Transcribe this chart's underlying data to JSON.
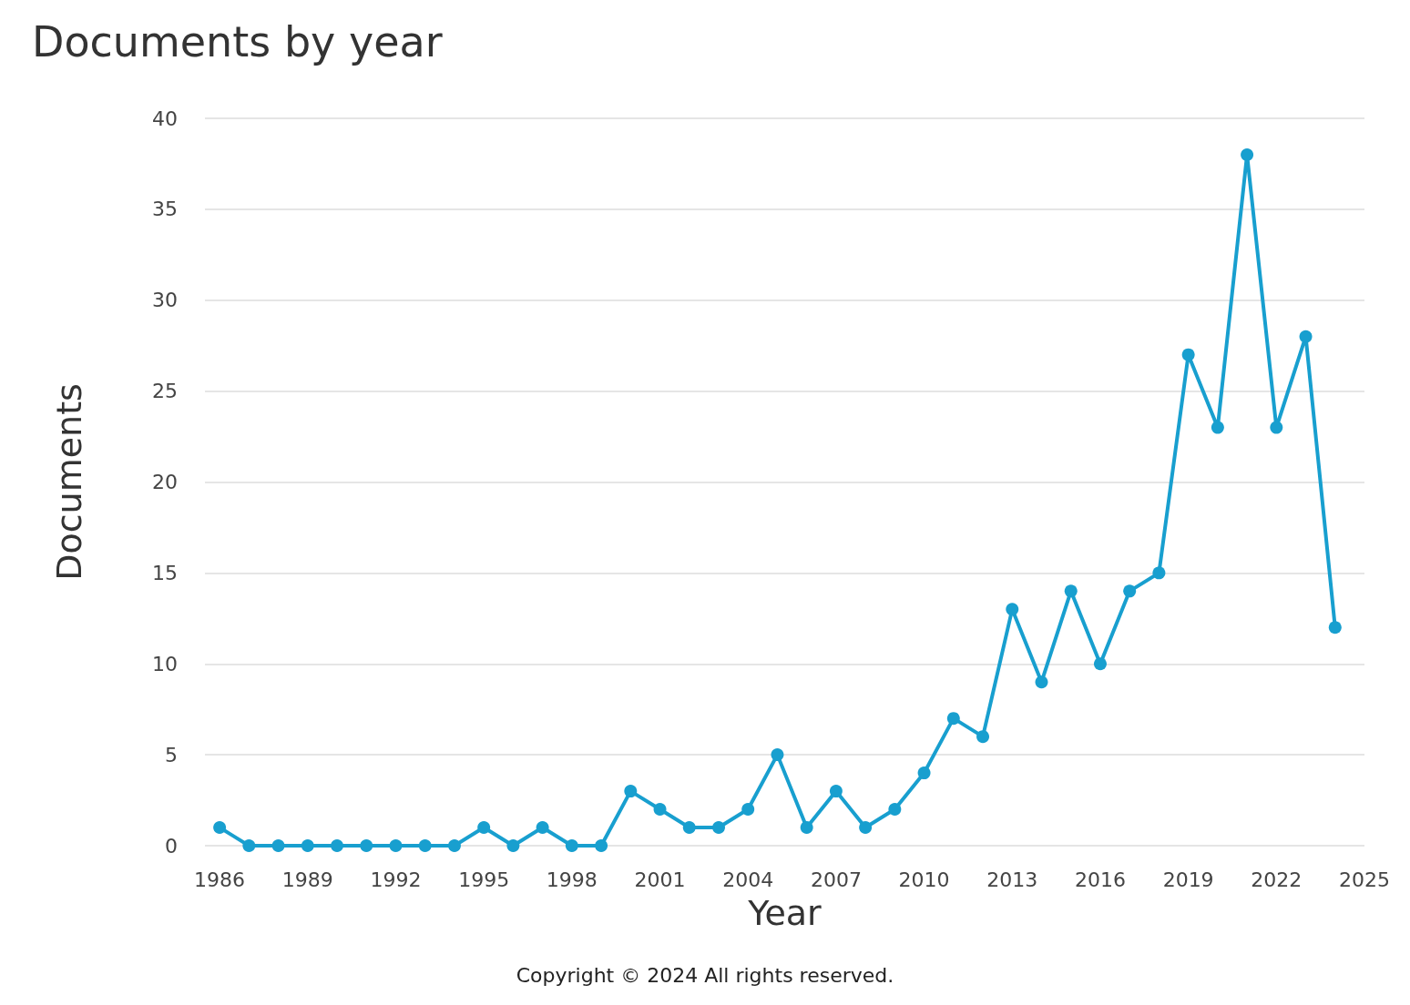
{
  "chart_data": {
    "type": "line",
    "title": "Documents by year",
    "xlabel": "Year",
    "ylabel": "Documents",
    "x": [
      1986,
      1987,
      1988,
      1989,
      1990,
      1991,
      1992,
      1993,
      1994,
      1995,
      1996,
      1997,
      1998,
      1999,
      2000,
      2001,
      2002,
      2003,
      2004,
      2005,
      2006,
      2007,
      2008,
      2009,
      2010,
      2011,
      2012,
      2013,
      2014,
      2015,
      2016,
      2017,
      2018,
      2019,
      2020,
      2021,
      2022,
      2023,
      2024
    ],
    "series": [
      {
        "color": "#189fcf",
        "values": [
          1,
          0,
          0,
          0,
          0,
          0,
          0,
          0,
          0,
          1,
          0,
          1,
          0,
          0,
          3,
          2,
          1,
          1,
          2,
          5,
          1,
          3,
          1,
          2,
          4,
          7,
          6,
          13,
          9,
          14,
          10,
          14,
          15,
          27,
          23,
          38,
          23,
          28,
          12
        ]
      }
    ],
    "xlim": [
      1985.5,
      2025
    ],
    "xticks": [
      1986,
      1989,
      1992,
      1995,
      1998,
      2001,
      2004,
      2007,
      2010,
      2013,
      2016,
      2019,
      2022,
      2025
    ],
    "ylim": [
      0,
      40
    ],
    "yticks": [
      0,
      5,
      10,
      15,
      20,
      25,
      30,
      35,
      40
    ],
    "grid": "y",
    "marker": "circle",
    "line_style": "solid",
    "annotations": [
      "Copyright © 2024 All rights reserved."
    ]
  }
}
